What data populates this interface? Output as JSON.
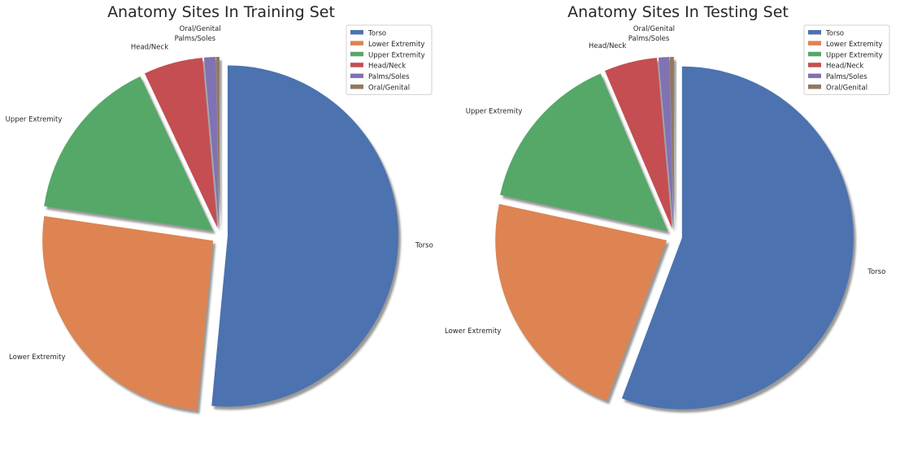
{
  "chart_data": [
    {
      "type": "pie",
      "title": "Anatomy Sites In Training Set",
      "categories": [
        "Torso",
        "Lower Extremity",
        "Upper Extremity",
        "Head/Neck",
        "Palms/Soles",
        "Oral/Genital"
      ],
      "values": [
        51.5,
        25.8,
        15.7,
        5.6,
        1.1,
        0.3
      ],
      "colors": [
        "#4c72b0",
        "#dd8452",
        "#55a868",
        "#c44e52",
        "#8172b3",
        "#937860"
      ],
      "start_angle_deg": 90,
      "direction": "clockwise",
      "explode": true,
      "shadow": true,
      "legend": {
        "entries": [
          "Torso",
          "Lower Extremity",
          "Upper Extremity",
          "Head/Neck",
          "Palms/Soles",
          "Oral/Genital"
        ],
        "position": "top-right"
      }
    },
    {
      "type": "pie",
      "title": "Anatomy Sites In Testing Set",
      "categories": [
        "Torso",
        "Lower Extremity",
        "Upper Extremity",
        "Head/Neck",
        "Palms/Soles",
        "Oral/Genital"
      ],
      "values": [
        55.7,
        22.7,
        15.2,
        5.0,
        1.0,
        0.4
      ],
      "colors": [
        "#4c72b0",
        "#dd8452",
        "#55a868",
        "#c44e52",
        "#8172b3",
        "#937860"
      ],
      "start_angle_deg": 90,
      "direction": "clockwise",
      "explode": true,
      "shadow": true,
      "legend": {
        "entries": [
          "Torso",
          "Lower Extremity",
          "Upper Extremity",
          "Head/Neck",
          "Palms/Soles",
          "Oral/Genital"
        ],
        "position": "top-right"
      }
    }
  ]
}
